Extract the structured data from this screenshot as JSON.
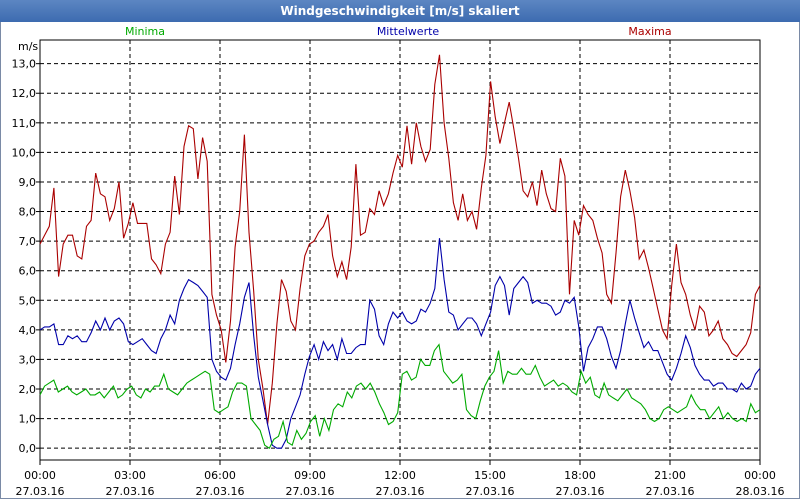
{
  "window": {
    "title": "Windgeschwindigkeit [m/s] skaliert"
  },
  "chart_data": {
    "type": "line",
    "title": "Windgeschwindigkeit [m/s] skaliert",
    "ylabel": "m/s",
    "ylim": [
      -0.4,
      13.8
    ],
    "xlim": [
      0,
      72
    ],
    "yticks": [
      "0,0",
      "1,0",
      "2,0",
      "3,0",
      "4,0",
      "5,0",
      "6,0",
      "7,0",
      "8,0",
      "9,0",
      "10,0",
      "11,0",
      "12,0",
      "13,0"
    ],
    "ytick_values": [
      0,
      1,
      2,
      3,
      4,
      5,
      6,
      7,
      8,
      9,
      10,
      11,
      12,
      13
    ],
    "xticks": [
      {
        "time": "00:00",
        "date": "27.03.16",
        "h": 0
      },
      {
        "time": "03:00",
        "date": "27.03.16",
        "h": 9
      },
      {
        "time": "06:00",
        "date": "27.03.16",
        "h": 18
      },
      {
        "time": "09:00",
        "date": "27.03.16",
        "h": 27
      },
      {
        "time": "12:00",
        "date": "27.03.16",
        "h": 36
      },
      {
        "time": "15:00",
        "date": "27.03.16",
        "h": 45
      },
      {
        "time": "18:00",
        "date": "27.03.16",
        "h": 54
      },
      {
        "time": "21:00",
        "date": "27.03.16",
        "h": 63
      },
      {
        "time": "00:00",
        "date": "28.03.16",
        "h": 72
      }
    ],
    "legend": [
      {
        "name": "Minima",
        "color": "#00aa00",
        "position": "top-left"
      },
      {
        "name": "Mittelwerte",
        "color": "#0000aa",
        "position": "top-center"
      },
      {
        "name": "Maxima",
        "color": "#aa0000",
        "position": "top-right"
      }
    ],
    "series": [
      {
        "name": "Maxima",
        "color": "#aa0000",
        "values": [
          6.9,
          7.2,
          7.5,
          8.8,
          5.8,
          6.9,
          7.2,
          7.2,
          6.5,
          6.4,
          7.5,
          7.7,
          9.3,
          8.6,
          8.5,
          7.7,
          8.1,
          9.0,
          7.1,
          7.6,
          8.3,
          7.6,
          7.6,
          7.6,
          6.4,
          6.2,
          5.9,
          6.9,
          7.3,
          9.2,
          7.9,
          10.2,
          10.9,
          10.8,
          9.1,
          10.5,
          9.7,
          5.2,
          4.5,
          4.0,
          2.9,
          4.3,
          6.8,
          8.0,
          10.6,
          7.3,
          5.3,
          3.0,
          2.0,
          0.8,
          2.2,
          4.2,
          5.7,
          5.3,
          4.3,
          4.0,
          5.4,
          6.5,
          6.9,
          7.0,
          7.3,
          7.5,
          7.9,
          6.5,
          5.8,
          6.3,
          5.7,
          6.8,
          9.6,
          7.2,
          7.3,
          8.1,
          7.9,
          8.7,
          8.2,
          8.6,
          9.3,
          9.9,
          9.5,
          10.9,
          9.6,
          11.0,
          10.2,
          9.7,
          10.1,
          12.3,
          13.3,
          11.0,
          9.8,
          8.3,
          7.7,
          8.6,
          7.7,
          8.0,
          7.4,
          8.8,
          9.9,
          12.4,
          11.2,
          10.3,
          11.0,
          11.7,
          10.8,
          9.8,
          8.7,
          8.5,
          9.0,
          8.2,
          9.4,
          8.6,
          8.1,
          8.0,
          9.8,
          9.2,
          5.2,
          7.7,
          7.2,
          8.2,
          7.9,
          7.7,
          7.1,
          6.6,
          5.2,
          4.9,
          6.6,
          8.5,
          9.4,
          8.7,
          7.8,
          6.4,
          6.7,
          6.1,
          5.4,
          4.7,
          4.0,
          3.7,
          5.5,
          6.9,
          5.6,
          5.2,
          4.5,
          4.0,
          4.8,
          4.6,
          3.8,
          4.0,
          4.3,
          3.7,
          3.5,
          3.2,
          3.1,
          3.3,
          3.5,
          3.9,
          5.2,
          5.5
        ]
      },
      {
        "name": "Mittelwerte",
        "color": "#0000aa",
        "values": [
          4.0,
          4.1,
          4.1,
          4.2,
          3.5,
          3.5,
          3.8,
          3.7,
          3.8,
          3.6,
          3.6,
          3.9,
          4.3,
          4.0,
          4.4,
          4.0,
          4.3,
          4.4,
          4.2,
          3.6,
          3.5,
          3.6,
          3.7,
          3.5,
          3.3,
          3.2,
          3.7,
          4.0,
          4.5,
          4.2,
          5.0,
          5.4,
          5.7,
          5.6,
          5.5,
          5.3,
          5.1,
          3.0,
          2.6,
          2.4,
          2.3,
          2.7,
          3.5,
          4.2,
          5.1,
          5.6,
          3.8,
          2.4,
          1.6,
          0.8,
          0.1,
          0.0,
          0.0,
          0.3,
          1.0,
          1.4,
          1.8,
          2.5,
          3.1,
          3.5,
          3.0,
          3.6,
          3.3,
          3.5,
          3.0,
          3.7,
          3.2,
          3.2,
          3.4,
          3.5,
          3.5,
          5.0,
          4.7,
          3.8,
          3.5,
          4.2,
          4.6,
          4.4,
          4.6,
          4.3,
          4.2,
          4.3,
          4.7,
          4.6,
          4.9,
          5.4,
          7.1,
          5.7,
          4.6,
          4.5,
          4.0,
          4.2,
          4.4,
          4.4,
          4.2,
          3.8,
          4.2,
          4.6,
          5.5,
          5.8,
          5.5,
          4.5,
          5.4,
          5.6,
          5.8,
          5.6,
          4.9,
          5.0,
          4.9,
          4.9,
          4.8,
          4.5,
          4.6,
          5.0,
          4.9,
          5.1,
          4.1,
          2.6,
          3.4,
          3.7,
          4.1,
          4.1,
          3.7,
          3.1,
          2.7,
          3.3,
          4.2,
          5.0,
          4.4,
          3.9,
          3.4,
          3.6,
          3.3,
          3.3,
          2.9,
          2.5,
          2.3,
          2.7,
          3.2,
          3.8,
          3.4,
          2.8,
          2.5,
          2.3,
          2.3,
          2.1,
          2.2,
          2.2,
          2.0,
          2.0,
          1.9,
          2.2,
          2.0,
          2.1,
          2.5,
          2.7
        ]
      },
      {
        "name": "Minima",
        "color": "#00aa00",
        "values": [
          1.8,
          2.1,
          2.2,
          2.3,
          1.9,
          2.0,
          2.1,
          1.9,
          1.8,
          1.9,
          2.0,
          1.8,
          1.8,
          1.9,
          1.7,
          1.9,
          2.1,
          1.7,
          1.8,
          2.0,
          2.1,
          1.8,
          1.7,
          2.0,
          1.9,
          2.1,
          2.1,
          2.5,
          2.0,
          1.9,
          1.8,
          2.0,
          2.2,
          2.3,
          2.4,
          2.5,
          2.6,
          2.5,
          1.3,
          1.2,
          1.3,
          1.4,
          1.9,
          2.2,
          2.2,
          2.1,
          1.0,
          0.8,
          0.6,
          0.1,
          0.0,
          0.3,
          0.4,
          0.9,
          0.2,
          0.1,
          0.6,
          0.3,
          0.5,
          0.9,
          1.1,
          0.4,
          1.0,
          0.6,
          1.3,
          1.5,
          1.4,
          1.9,
          1.7,
          2.1,
          2.2,
          2.0,
          2.2,
          1.9,
          1.5,
          1.2,
          0.8,
          0.9,
          1.2,
          2.5,
          2.6,
          2.3,
          2.4,
          3.0,
          2.8,
          2.8,
          3.3,
          3.5,
          2.6,
          2.4,
          2.2,
          2.3,
          2.5,
          1.3,
          1.1,
          1.0,
          1.6,
          2.1,
          2.4,
          2.6,
          3.3,
          2.2,
          2.6,
          2.5,
          2.5,
          2.7,
          2.5,
          2.5,
          2.8,
          2.4,
          2.1,
          2.2,
          2.3,
          2.1,
          2.2,
          2.1,
          1.9,
          1.8,
          2.6,
          2.2,
          2.4,
          1.8,
          1.7,
          2.2,
          1.8,
          1.7,
          1.6,
          1.8,
          2.0,
          1.7,
          1.6,
          1.5,
          1.3,
          1.0,
          0.9,
          1.0,
          1.3,
          1.4,
          1.3,
          1.2,
          1.3,
          1.4,
          1.8,
          1.5,
          1.3,
          1.3,
          1.0,
          1.2,
          1.4,
          1.0,
          1.2,
          1.0,
          0.9,
          1.0,
          0.9,
          1.5,
          1.2,
          1.3
        ]
      }
    ]
  }
}
